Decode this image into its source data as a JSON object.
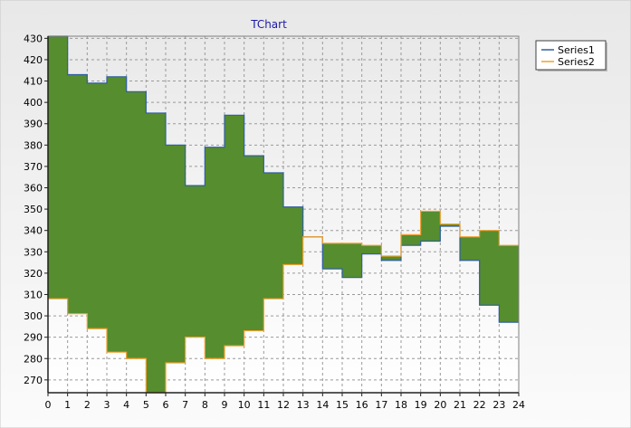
{
  "chart_data": {
    "type": "area",
    "title": "TChart",
    "xlabel": "",
    "ylabel": "",
    "step": true,
    "xlim": [
      0,
      24
    ],
    "ylim": [
      264,
      431
    ],
    "x_ticks": [
      0,
      1,
      2,
      3,
      4,
      5,
      6,
      7,
      8,
      9,
      10,
      11,
      12,
      13,
      14,
      15,
      16,
      17,
      18,
      19,
      20,
      21,
      22,
      23,
      24
    ],
    "y_ticks": [
      270,
      280,
      290,
      300,
      310,
      320,
      330,
      340,
      350,
      360,
      370,
      380,
      390,
      400,
      410,
      420,
      430
    ],
    "grid": true,
    "legend_position": "top-right",
    "fill_color": "#568d2e",
    "x": [
      0,
      1,
      2,
      3,
      4,
      5,
      6,
      7,
      8,
      9,
      10,
      11,
      12,
      13,
      14,
      15,
      16,
      17,
      18,
      19,
      20,
      21,
      22,
      23,
      24
    ],
    "series": [
      {
        "name": "Series1",
        "color": "#2f5fa0",
        "values": [
          431,
          413,
          409,
          412,
          405,
          395,
          380,
          361,
          379,
          394,
          375,
          367,
          351,
          337,
          322,
          318,
          329,
          326,
          333,
          335,
          342,
          326,
          305,
          297,
          297
        ]
      },
      {
        "name": "Series2",
        "color": "#f0a030",
        "values": [
          308,
          301,
          294,
          283,
          280,
          264,
          278,
          290,
          280,
          286,
          293,
          308,
          324,
          337,
          334,
          334,
          333,
          328,
          338,
          349,
          343,
          337,
          340,
          333,
          333
        ]
      }
    ]
  }
}
